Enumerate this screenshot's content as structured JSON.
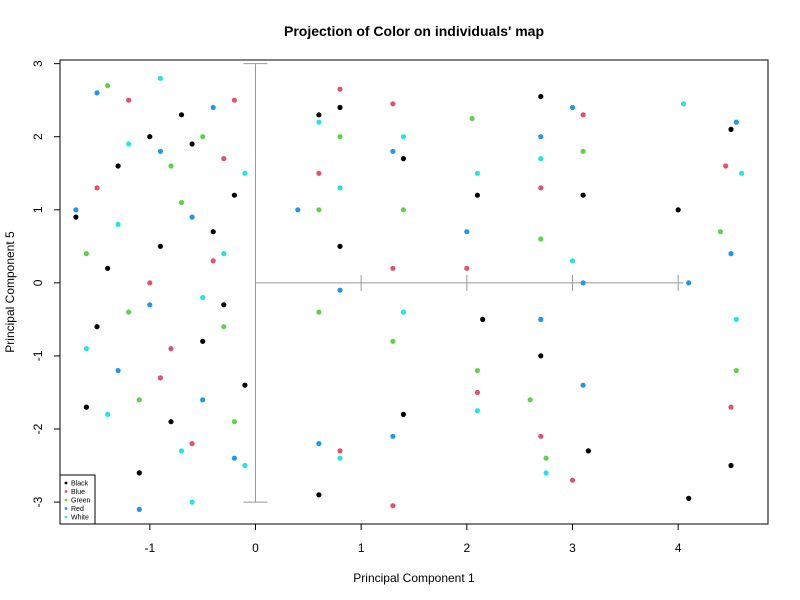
{
  "chart_data": {
    "type": "scatter",
    "title": "Projection of Color on individuals' map",
    "xlabel": "Principal Component 1",
    "ylabel": "Principal Component 5",
    "xlim": [
      -1.85,
      4.85
    ],
    "ylim": [
      -3.3,
      3.05
    ],
    "xticks": [
      -1,
      0,
      1,
      2,
      3,
      4
    ],
    "yticks": [
      -3,
      -2,
      -1,
      0,
      1,
      2,
      3
    ],
    "grid": false,
    "legend_position": "bottom-left",
    "series": [
      {
        "name": "Black",
        "color": "#000000",
        "points": [
          [
            -1.3,
            1.6
          ],
          [
            -0.9,
            0.5
          ],
          [
            -0.5,
            -0.8
          ],
          [
            -0.2,
            1.2
          ],
          [
            -1.6,
            -1.7
          ],
          [
            -0.7,
            2.3
          ],
          [
            -1.1,
            -2.6
          ],
          [
            -0.3,
            -0.3
          ],
          [
            -1.4,
            0.2
          ],
          [
            -0.6,
            1.9
          ],
          [
            -0.1,
            -1.4
          ],
          [
            -1.7,
            0.9
          ],
          [
            -0.8,
            -1.9
          ],
          [
            -1.0,
            2.0
          ],
          [
            0.6,
            2.3
          ],
          [
            0.6,
            -2.9
          ],
          [
            0.8,
            2.4
          ],
          [
            0.8,
            0.5
          ],
          [
            1.4,
            1.7
          ],
          [
            1.4,
            -1.8
          ],
          [
            2.1,
            1.2
          ],
          [
            2.15,
            -0.5
          ],
          [
            2.7,
            2.55
          ],
          [
            2.7,
            -1.0
          ],
          [
            3.1,
            1.2
          ],
          [
            3.15,
            -2.3
          ],
          [
            4.1,
            -2.95
          ],
          [
            4.0,
            1.0
          ],
          [
            4.5,
            2.1
          ],
          [
            4.5,
            -2.5
          ],
          [
            -1.5,
            -0.6
          ],
          [
            -0.4,
            0.7
          ]
        ]
      },
      {
        "name": "Blue",
        "color": "#DF536B",
        "points": [
          [
            -1.2,
            2.5
          ],
          [
            -0.8,
            -0.9
          ],
          [
            -0.4,
            0.3
          ],
          [
            -1.5,
            1.3
          ],
          [
            -0.6,
            -2.2
          ],
          [
            -1.0,
            0.0
          ],
          [
            -0.2,
            2.5
          ],
          [
            -1.65,
            -2.9
          ],
          [
            0.6,
            1.5
          ],
          [
            0.8,
            2.65
          ],
          [
            0.8,
            -2.3
          ],
          [
            1.3,
            2.45
          ],
          [
            1.3,
            -3.05
          ],
          [
            1.3,
            0.2
          ],
          [
            2.0,
            0.2
          ],
          [
            2.1,
            -1.5
          ],
          [
            2.7,
            1.3
          ],
          [
            2.7,
            -2.1
          ],
          [
            3.0,
            -2.7
          ],
          [
            3.1,
            2.3
          ],
          [
            4.45,
            1.6
          ],
          [
            4.5,
            -1.7
          ],
          [
            -0.9,
            -1.3
          ],
          [
            -0.3,
            1.7
          ]
        ]
      },
      {
        "name": "Green",
        "color": "#61D04F",
        "points": [
          [
            -1.4,
            2.7
          ],
          [
            -0.7,
            1.1
          ],
          [
            -1.1,
            -1.6
          ],
          [
            -0.3,
            -0.6
          ],
          [
            -1.6,
            0.4
          ],
          [
            -0.5,
            2.0
          ],
          [
            -1.8,
            -3.0
          ],
          [
            -0.2,
            -1.9
          ],
          [
            0.6,
            -0.4
          ],
          [
            0.6,
            1.0
          ],
          [
            0.8,
            2.0
          ],
          [
            1.3,
            -0.8
          ],
          [
            1.4,
            1.0
          ],
          [
            2.05,
            2.25
          ],
          [
            2.1,
            -1.2
          ],
          [
            2.6,
            -1.6
          ],
          [
            2.7,
            0.6
          ],
          [
            2.75,
            -2.4
          ],
          [
            3.1,
            1.8
          ],
          [
            4.4,
            0.7
          ],
          [
            4.55,
            -1.2
          ],
          [
            -1.2,
            -0.4
          ],
          [
            -0.8,
            1.6
          ]
        ]
      },
      {
        "name": "Red",
        "color": "#2297E6",
        "points": [
          [
            -1.5,
            2.6
          ],
          [
            -1.0,
            -0.3
          ],
          [
            -0.6,
            0.9
          ],
          [
            -0.2,
            -2.4
          ],
          [
            -1.3,
            -1.2
          ],
          [
            -0.9,
            1.8
          ],
          [
            -1.1,
            -3.1
          ],
          [
            -0.4,
            2.4
          ],
          [
            0.4,
            1.0
          ],
          [
            0.6,
            -2.2
          ],
          [
            0.8,
            -0.1
          ],
          [
            1.3,
            1.8
          ],
          [
            1.3,
            -2.1
          ],
          [
            2.0,
            0.7
          ],
          [
            2.7,
            2.0
          ],
          [
            2.7,
            -0.5
          ],
          [
            3.1,
            0.0
          ],
          [
            3.0,
            2.4
          ],
          [
            3.1,
            -1.4
          ],
          [
            4.1,
            0.0
          ],
          [
            4.55,
            2.2
          ],
          [
            4.5,
            0.4
          ],
          [
            -1.7,
            1.0
          ],
          [
            -0.5,
            -1.6
          ]
        ]
      },
      {
        "name": "White",
        "color": "#28E2E5",
        "points": [
          [
            -0.9,
            2.8
          ],
          [
            -1.3,
            0.8
          ],
          [
            -0.5,
            -0.2
          ],
          [
            -0.1,
            1.5
          ],
          [
            -1.6,
            -0.9
          ],
          [
            -0.7,
            -2.3
          ],
          [
            -0.6,
            -3.0
          ],
          [
            -0.1,
            -2.5
          ],
          [
            -1.2,
            1.9
          ],
          [
            0.6,
            2.2
          ],
          [
            0.8,
            -2.4
          ],
          [
            0.8,
            1.3
          ],
          [
            1.4,
            2.0
          ],
          [
            1.4,
            -0.4
          ],
          [
            2.1,
            -1.75
          ],
          [
            2.1,
            1.5
          ],
          [
            2.7,
            1.7
          ],
          [
            2.75,
            -2.6
          ],
          [
            3.0,
            0.3
          ],
          [
            4.05,
            2.45
          ],
          [
            4.6,
            1.5
          ],
          [
            4.55,
            -0.5
          ],
          [
            -1.4,
            -1.8
          ],
          [
            -0.3,
            0.4
          ]
        ]
      }
    ]
  }
}
